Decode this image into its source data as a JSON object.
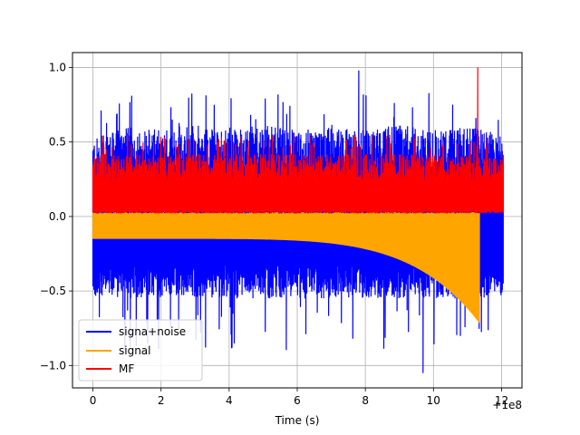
{
  "chart_data": {
    "type": "line",
    "title": "",
    "xlabel": "Time (s)",
    "ylabel": "",
    "x_offset_label": "+1e8",
    "xlim": [
      -0.6,
      12.6
    ],
    "ylim": [
      -1.15,
      1.1
    ],
    "x_ticks": [
      0,
      2,
      4,
      6,
      8,
      10,
      12
    ],
    "x_tick_labels": [
      "0",
      "2",
      "4",
      "6",
      "8",
      "10",
      "12"
    ],
    "y_ticks": [
      -1.0,
      -0.5,
      0.0,
      0.5,
      1.0
    ],
    "y_tick_labels": [
      "−1.0",
      "−0.5",
      "0.0",
      "0.5",
      "1.0"
    ],
    "grid": true,
    "legend_position": "lower-left",
    "series": [
      {
        "name": "signa+noise",
        "color": "#0000ff",
        "x_start": 0,
        "x_end": 12.05,
        "envelope_upper": [
          0.52,
          0.6,
          0.58,
          0.62,
          0.58,
          0.62,
          0.58,
          0.6,
          0.58,
          0.62,
          0.58,
          0.6,
          0.55
        ],
        "envelope_lower": [
          -0.16,
          -0.165,
          -0.17,
          -0.175,
          -0.18,
          -0.185,
          -0.19,
          -0.2,
          -0.21,
          -0.23,
          -0.26,
          -0.32,
          -0.45
        ],
        "noise_floor_lower": -0.55,
        "peak_max": 0.98,
        "peak_max_x": 7.8,
        "peak_min": -1.05,
        "peak_min_x": 9.7
      },
      {
        "name": "signal",
        "color": "#ffa500",
        "x_start": 0,
        "x_end": 11.35,
        "upper": 0.02,
        "lower_start": -0.15,
        "lower_end": -0.7,
        "chirp_end_x": 11.3
      },
      {
        "name": "MF",
        "color": "#ff0000",
        "x_start": 0,
        "x_end": 12.05,
        "band_upper": 0.42,
        "band_lower": 0.02,
        "peak_max": 1.0,
        "peak_max_x": 11.3
      }
    ]
  }
}
